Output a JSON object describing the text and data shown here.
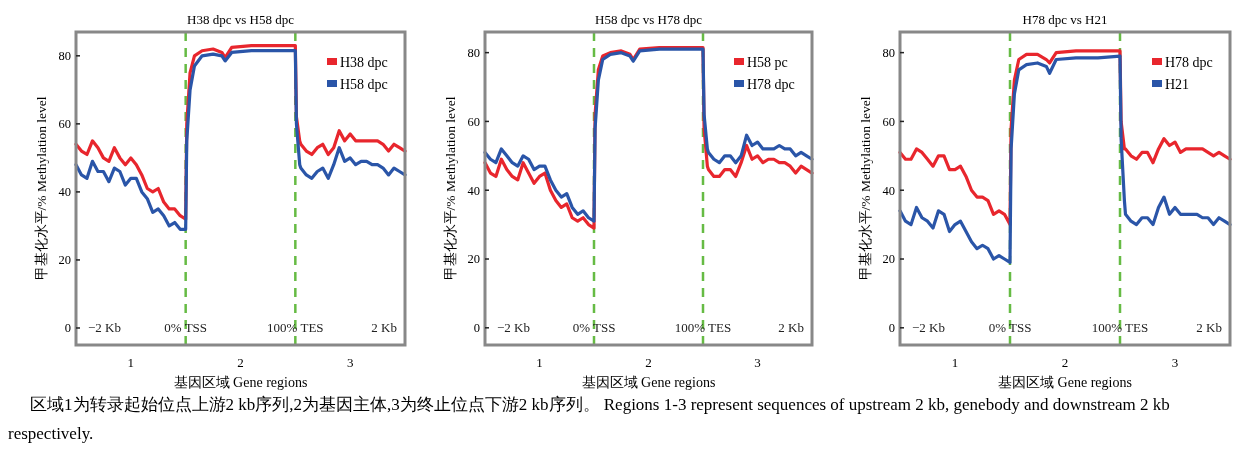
{
  "chart_data": [
    {
      "type": "line",
      "title": "H38 dpc vs H58 dpc",
      "xlabel": "基因区域  Gene regions",
      "ylabel": "甲基化水平/% Methylation level",
      "x": [
        0,
        0.05,
        0.1,
        0.15,
        0.2,
        0.25,
        0.3,
        0.35,
        0.4,
        0.45,
        0.5,
        0.55,
        0.6,
        0.65,
        0.7,
        0.75,
        0.8,
        0.85,
        0.9,
        0.95,
        1.0,
        1.01,
        1.04,
        1.08,
        1.15,
        1.25,
        1.33,
        1.36,
        1.42,
        1.6,
        1.8,
        2.0,
        2.01,
        2.04,
        2.05,
        2.1,
        2.15,
        2.2,
        2.25,
        2.3,
        2.35,
        2.4,
        2.45,
        2.5,
        2.55,
        2.6,
        2.65,
        2.7,
        2.75,
        2.8,
        2.85,
        2.9,
        2.95,
        3.0
      ],
      "series": [
        {
          "name": "H38 dpc",
          "color": "#e8262d",
          "values": [
            54,
            52,
            51,
            55,
            53,
            50,
            49,
            53,
            50,
            48,
            50,
            48,
            45,
            41,
            40,
            41,
            37,
            35,
            35,
            33,
            32,
            60,
            75,
            80,
            81.5,
            82,
            81,
            79.5,
            82.5,
            83,
            83,
            83,
            62,
            55,
            54,
            52,
            51,
            53,
            54,
            51,
            53,
            58,
            55,
            57,
            55,
            55,
            55,
            55,
            55,
            54,
            52,
            54,
            53,
            52
          ]
        },
        {
          "name": "H58 dpc",
          "color": "#2a55a8",
          "values": [
            48,
            45,
            44,
            49,
            46,
            46,
            43,
            47,
            46,
            42,
            44,
            44,
            40,
            38,
            34,
            35,
            33,
            30,
            31,
            29,
            29,
            55,
            70,
            77,
            80,
            80.5,
            80,
            78.5,
            81,
            81.5,
            81.5,
            81.5,
            60,
            48,
            47,
            45,
            44,
            46,
            47,
            44,
            48,
            53,
            49,
            50,
            48,
            49,
            49,
            48,
            48,
            47,
            45,
            47,
            46,
            45
          ]
        }
      ],
      "xlim": [
        0,
        3
      ],
      "ylim": [
        -5,
        87
      ],
      "xticks": [
        {
          "value": 0.5,
          "label": "1"
        },
        {
          "value": 1.5,
          "label": "2"
        },
        {
          "value": 2.5,
          "label": "3"
        }
      ],
      "yticks": [
        0,
        20,
        40,
        60,
        80
      ],
      "ref_lines": [
        {
          "axis": "x",
          "value": 1,
          "label": "0% TSS",
          "color": "#66bb44",
          "line_style": "dashed"
        },
        {
          "axis": "x",
          "value": 2,
          "label": "100% TES",
          "color": "#66bb44",
          "line_style": "dashed"
        }
      ],
      "annotations": [
        "−2 Kb",
        "2 Kb",
        "区域1为转录起始位点上游2 kb序列,2为基因主体,3为终止位点下游2 kb序列。 Regions 1-3 represent sequences of upstream 2 kb, genebody and downstream 2 kb respectively."
      ],
      "legend": "top right",
      "line_style": "solid",
      "grid": false
    },
    {
      "type": "line",
      "title": "H58 dpc vs H78 dpc",
      "xlabel": "基因区域  Gene regions",
      "ylabel": "甲基化水平/% Methylation level",
      "x": [
        0,
        0.05,
        0.1,
        0.15,
        0.2,
        0.25,
        0.3,
        0.35,
        0.4,
        0.45,
        0.5,
        0.55,
        0.6,
        0.65,
        0.7,
        0.75,
        0.8,
        0.85,
        0.9,
        0.95,
        1.0,
        1.01,
        1.04,
        1.08,
        1.15,
        1.25,
        1.33,
        1.36,
        1.42,
        1.6,
        1.8,
        2.0,
        2.01,
        2.04,
        2.05,
        2.1,
        2.15,
        2.2,
        2.25,
        2.3,
        2.35,
        2.4,
        2.45,
        2.5,
        2.55,
        2.6,
        2.65,
        2.7,
        2.75,
        2.8,
        2.85,
        2.9,
        2.95,
        3.0
      ],
      "series": [
        {
          "name": "H58 pc",
          "color": "#e8262d",
          "values": [
            48,
            45,
            44,
            49,
            46,
            44,
            43,
            48,
            45,
            42,
            44,
            45,
            40,
            37,
            35,
            36,
            32,
            31,
            32,
            30,
            29,
            62,
            75,
            79,
            80,
            80.5,
            79.5,
            78,
            81,
            81.5,
            81.5,
            81.5,
            58,
            47,
            46,
            44,
            44,
            46,
            46,
            44,
            48,
            53,
            49,
            50,
            48,
            49,
            49,
            48,
            48,
            47,
            45,
            47,
            46,
            45
          ]
        },
        {
          "name": "H78 dpc",
          "color": "#2a55a8",
          "values": [
            51,
            49,
            48,
            52,
            50,
            48,
            47,
            50,
            49,
            46,
            47,
            47,
            43,
            40,
            38,
            39,
            35,
            33,
            34,
            32,
            31,
            58,
            72,
            78,
            79.5,
            80,
            79,
            77.5,
            80.5,
            81,
            81,
            81,
            62,
            52,
            51,
            49,
            48,
            50,
            50,
            48,
            50,
            56,
            53,
            54,
            52,
            52,
            52,
            53,
            52,
            52,
            50,
            51,
            50,
            49
          ]
        }
      ],
      "xlim": [
        0,
        3
      ],
      "ylim": [
        -5,
        86
      ],
      "xticks": [
        {
          "value": 0.5,
          "label": "1"
        },
        {
          "value": 1.5,
          "label": "2"
        },
        {
          "value": 2.5,
          "label": "3"
        }
      ],
      "yticks": [
        0,
        20,
        40,
        60,
        80
      ],
      "ref_lines": [
        {
          "axis": "x",
          "value": 1,
          "label": "0% TSS",
          "color": "#66bb44",
          "line_style": "dashed"
        },
        {
          "axis": "x",
          "value": 2,
          "label": "100% TES",
          "color": "#66bb44",
          "line_style": "dashed"
        }
      ],
      "annotations": [
        "−2 Kb",
        "2 Kb"
      ],
      "legend": "top right",
      "line_style": "solid",
      "grid": false
    },
    {
      "type": "line",
      "title": "H78 dpc vs H21",
      "xlabel": "基因区域  Gene regions",
      "ylabel": "甲基化水平/% Methylation level",
      "x": [
        0,
        0.05,
        0.1,
        0.15,
        0.2,
        0.25,
        0.3,
        0.35,
        0.4,
        0.45,
        0.5,
        0.55,
        0.6,
        0.65,
        0.7,
        0.75,
        0.8,
        0.85,
        0.9,
        0.95,
        1.0,
        1.01,
        1.04,
        1.08,
        1.15,
        1.25,
        1.33,
        1.36,
        1.42,
        1.6,
        1.8,
        2.0,
        2.01,
        2.04,
        2.05,
        2.1,
        2.15,
        2.2,
        2.25,
        2.3,
        2.35,
        2.4,
        2.45,
        2.5,
        2.55,
        2.6,
        2.65,
        2.7,
        2.75,
        2.8,
        2.85,
        2.9,
        2.95,
        3.0
      ],
      "series": [
        {
          "name": "H78 dpc",
          "color": "#e8262d",
          "values": [
            51,
            49,
            49,
            52,
            51,
            49,
            47,
            50,
            50,
            46,
            46,
            47,
            44,
            40,
            38,
            38,
            37,
            33,
            34,
            33,
            30,
            58,
            72,
            78,
            79.5,
            79.5,
            78,
            77,
            80,
            80.5,
            80.5,
            80.5,
            60,
            52,
            52,
            50,
            49,
            51,
            51,
            48,
            52,
            55,
            53,
            54,
            51,
            52,
            52,
            52,
            52,
            51,
            50,
            51,
            50,
            49
          ]
        },
        {
          "name": "H21",
          "color": "#2a55a8",
          "values": [
            34,
            31,
            30,
            35,
            32,
            31,
            29,
            34,
            33,
            28,
            30,
            31,
            28,
            25,
            23,
            24,
            23,
            20,
            21,
            20,
            19,
            52,
            68,
            75,
            76.5,
            77,
            76,
            74,
            78,
            78.5,
            78.5,
            79,
            55,
            37,
            33,
            31,
            30,
            32,
            32,
            30,
            35,
            38,
            33,
            35,
            33,
            33,
            33,
            33,
            32,
            32,
            30,
            32,
            31,
            30
          ]
        }
      ],
      "xlim": [
        0,
        3
      ],
      "ylim": [
        -5,
        86
      ],
      "xticks": [
        {
          "value": 0.5,
          "label": "1"
        },
        {
          "value": 1.5,
          "label": "2"
        },
        {
          "value": 2.5,
          "label": "3"
        }
      ],
      "yticks": [
        0,
        20,
        40,
        60,
        80
      ],
      "ref_lines": [
        {
          "axis": "x",
          "value": 1,
          "label": "0% TSS",
          "color": "#66bb44",
          "line_style": "dashed"
        },
        {
          "axis": "x",
          "value": 2,
          "label": "100% TES",
          "color": "#66bb44",
          "line_style": "dashed"
        }
      ],
      "annotations": [
        "−2 Kb",
        "2 Kb"
      ],
      "legend": "top right",
      "line_style": "solid",
      "grid": false
    }
  ]
}
